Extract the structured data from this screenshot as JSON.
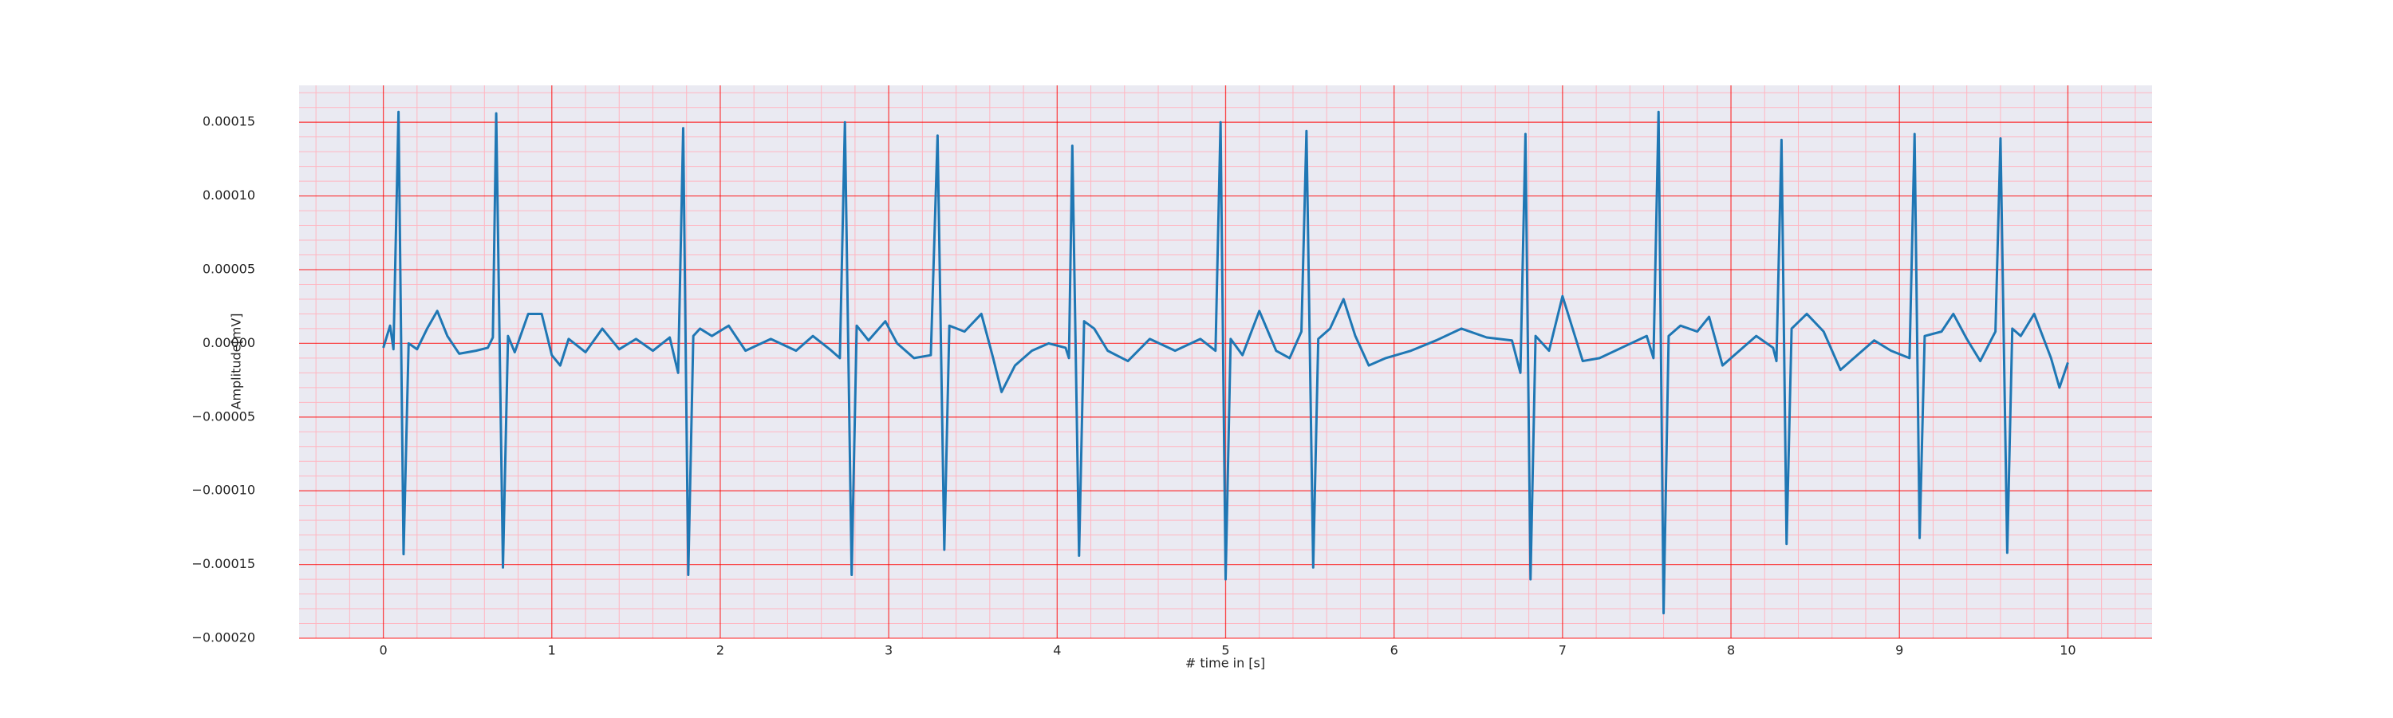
{
  "chart_data": {
    "type": "line",
    "xlabel": "# time in [s]",
    "ylabel": "Amplitude[mV]",
    "xlim": [
      -0.5,
      10.5
    ],
    "ylim": [
      -0.0002,
      0.000175
    ],
    "xticks": [
      0,
      1,
      2,
      3,
      4,
      5,
      6,
      7,
      8,
      9,
      10
    ],
    "yticks": [
      {
        "value": -0.0002,
        "label": "−0.00020"
      },
      {
        "value": -0.00015,
        "label": "−0.00015"
      },
      {
        "value": -0.0001,
        "label": "−0.00010"
      },
      {
        "value": -5e-05,
        "label": "−0.00005"
      },
      {
        "value": 0,
        "label": "0.00000"
      },
      {
        "value": 5e-05,
        "label": "0.00005"
      },
      {
        "value": 0.0001,
        "label": "0.00010"
      },
      {
        "value": 0.00015,
        "label": "0.00015"
      }
    ],
    "grid": true,
    "minor_grid": true,
    "grid_color": "#ff0000",
    "minor_grid_color": "#ffb6c1",
    "background": "#eaeaf2",
    "x": [
      0.0,
      0.04,
      0.06,
      0.09,
      0.12,
      0.15,
      0.2,
      0.26,
      0.32,
      0.38,
      0.45,
      0.55,
      0.62,
      0.65,
      0.67,
      0.71,
      0.74,
      0.78,
      0.86,
      0.94,
      1.0,
      1.05,
      1.1,
      1.2,
      1.3,
      1.4,
      1.5,
      1.6,
      1.7,
      1.75,
      1.78,
      1.81,
      1.84,
      1.88,
      1.95,
      2.05,
      2.15,
      2.3,
      2.45,
      2.55,
      2.65,
      2.71,
      2.74,
      2.78,
      2.81,
      2.88,
      2.98,
      3.05,
      3.15,
      3.25,
      3.29,
      3.33,
      3.36,
      3.45,
      3.55,
      3.62,
      3.67,
      3.75,
      3.85,
      3.95,
      4.05,
      4.07,
      4.09,
      4.13,
      4.16,
      4.22,
      4.3,
      4.42,
      4.55,
      4.7,
      4.85,
      4.94,
      4.97,
      5.0,
      5.03,
      5.1,
      5.2,
      5.3,
      5.38,
      5.45,
      5.48,
      5.52,
      5.55,
      5.62,
      5.7,
      5.77,
      5.85,
      5.95,
      6.1,
      6.25,
      6.4,
      6.55,
      6.7,
      6.75,
      6.78,
      6.81,
      6.84,
      6.92,
      7.0,
      7.06,
      7.12,
      7.22,
      7.35,
      7.5,
      7.54,
      7.57,
      7.6,
      7.63,
      7.7,
      7.8,
      7.87,
      7.95,
      8.05,
      8.15,
      8.25,
      8.27,
      8.3,
      8.33,
      8.36,
      8.45,
      8.55,
      8.65,
      8.75,
      8.85,
      8.95,
      9.06,
      9.09,
      9.12,
      9.15,
      9.25,
      9.32,
      9.4,
      9.48,
      9.57,
      9.6,
      9.64,
      9.67,
      9.72,
      9.8,
      9.9,
      9.95,
      10.0
    ],
    "series": [
      {
        "color": "#1f77b4",
        "values": [
          -3e-06,
          1.2e-05,
          -4e-06,
          0.000157,
          -0.000143,
          0.0,
          -4e-06,
          1e-05,
          2.2e-05,
          5e-06,
          -7e-06,
          -5e-06,
          -3e-06,
          4e-06,
          0.000156,
          -0.000152,
          5e-06,
          -6e-06,
          2e-05,
          2e-05,
          -8e-06,
          -1.5e-05,
          3e-06,
          -6e-06,
          1e-05,
          -4e-06,
          3e-06,
          -5e-06,
          4e-06,
          -2e-05,
          0.000146,
          -0.000157,
          5e-06,
          1e-05,
          5e-06,
          1.2e-05,
          -5e-06,
          3e-06,
          -5e-06,
          5e-06,
          -4e-06,
          -1e-05,
          0.00015,
          -0.000157,
          1.2e-05,
          2e-06,
          1.5e-05,
          0.0,
          -1e-05,
          -8e-06,
          0.000141,
          -0.00014,
          1.2e-05,
          8e-06,
          2e-05,
          -1e-05,
          -3.3e-05,
          -1.5e-05,
          -5e-06,
          0.0,
          -3e-06,
          -1e-05,
          0.000134,
          -0.000144,
          1.5e-05,
          1e-05,
          -5e-06,
          -1.2e-05,
          3e-06,
          -5e-06,
          3e-06,
          -5e-06,
          0.00015,
          -0.00016,
          3e-06,
          -8e-06,
          2.2e-05,
          -5e-06,
          -1e-05,
          8e-06,
          0.000144,
          -0.000152,
          3e-06,
          1e-05,
          3e-05,
          5e-06,
          -1.5e-05,
          -1e-05,
          -5e-06,
          2e-06,
          1e-05,
          4e-06,
          2e-06,
          -2e-05,
          0.000142,
          -0.00016,
          5e-06,
          -5e-06,
          3.2e-05,
          1e-05,
          -1.2e-05,
          -1e-05,
          -3e-06,
          5e-06,
          -1e-05,
          0.000157,
          -0.000183,
          5e-06,
          1.2e-05,
          8e-06,
          1.8e-05,
          -1.5e-05,
          -5e-06,
          5e-06,
          -3e-06,
          -1.2e-05,
          0.000138,
          -0.000136,
          1e-05,
          2e-05,
          8e-06,
          -1.8e-05,
          -8e-06,
          2e-06,
          -5e-06,
          -1e-05,
          0.000142,
          -0.000132,
          5e-06,
          8e-06,
          2e-05,
          3e-06,
          -1.2e-05,
          8e-06,
          0.000139,
          -0.000142,
          1e-05,
          5e-06,
          2e-05,
          -1e-05,
          -3e-05,
          -1.3e-05
        ]
      }
    ]
  }
}
